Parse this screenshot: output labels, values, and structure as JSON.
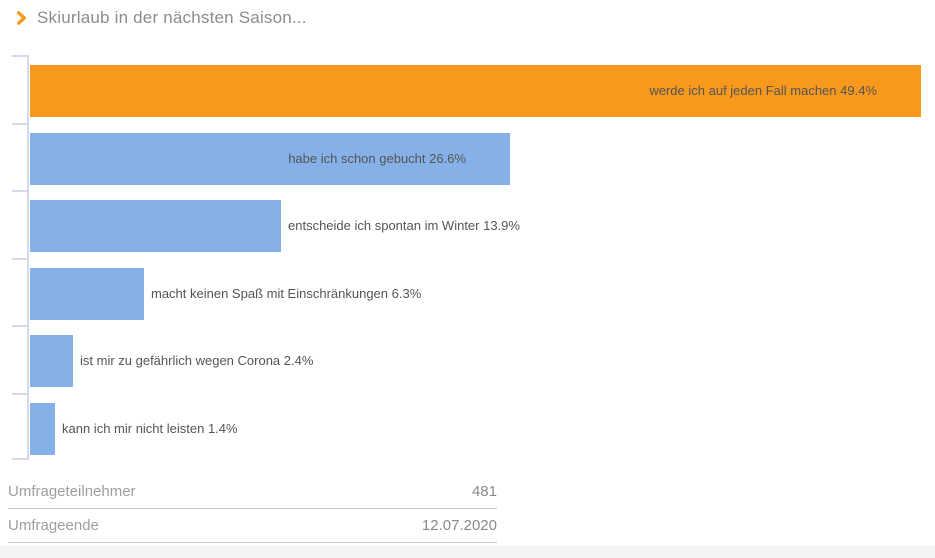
{
  "header": {
    "title": "Skiurlaub in der nächsten Saison...",
    "icon": "chevron-right-icon",
    "accent_color": "#F8981D"
  },
  "chart_data": {
    "type": "bar",
    "orientation": "horizontal",
    "title": "Skiurlaub in der nächsten Saison...",
    "categories": [
      "werde ich auf jeden Fall machen",
      "habe ich schon gebucht",
      "entscheide ich spontan im Winter",
      "macht keinen Spaß mit Einschränkungen",
      "ist mir zu gefährlich wegen Corona",
      "kann ich mir nicht leisten"
    ],
    "values": [
      49.4,
      26.6,
      13.9,
      6.3,
      2.4,
      1.4
    ],
    "unit": "%",
    "xlim": [
      0,
      50
    ],
    "grid": false,
    "legend": false,
    "axis": "left-only",
    "highlight_index": 0,
    "highlight_color": "#F8981D",
    "bar_color": "#85B1E8",
    "axis_color": "#D4DAEC",
    "label_color": "#555555"
  },
  "summary": {
    "rows": [
      {
        "label": "Umfrageteilnehmer",
        "value": "481"
      },
      {
        "label": "Umfrageende",
        "value": "12.07.2020"
      }
    ]
  }
}
